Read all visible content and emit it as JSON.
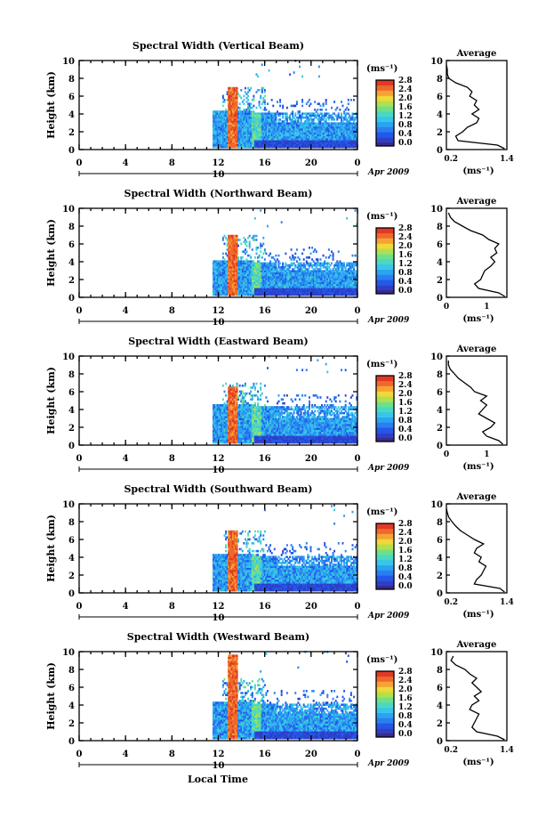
{
  "figure": {
    "xaxis_label": "Local Time",
    "date_label": "Apr 2009",
    "day_marker": "10",
    "colorbar_unit": "(ms⁻¹)",
    "colorbar_ticks": [
      "0.0",
      "0.4",
      "0.8",
      "1.2",
      "1.6",
      "2.0",
      "2.4",
      "2.8"
    ],
    "avg_title": "Average",
    "avg_xlabel": "(ms⁻¹)"
  },
  "chart_data": [
    {
      "type": "heatmap",
      "title": "Spectral Width (Vertical Beam)",
      "ylabel": "Height (km)",
      "xlim": [
        0,
        24
      ],
      "ylim": [
        0,
        10
      ],
      "xticks": [
        "0",
        "4",
        "8",
        "12",
        "16",
        "20",
        "0"
      ],
      "yticks": [
        "0",
        "2",
        "4",
        "6",
        "8",
        "10"
      ],
      "colorscale": {
        "unit": "ms^-1",
        "min": 0.0,
        "max": 3.0
      },
      "data_extent": {
        "start_hour": 11.5,
        "end_hour": 24,
        "base_top_km": 4.0
      },
      "convective_band": {
        "center_hour": 13.2,
        "top_km": 7.0,
        "value": 3.0
      },
      "average_profile": {
        "xlim": [
          0.1,
          1.4
        ],
        "xticks": [
          "0.2",
          "1.4"
        ],
        "yticks": [
          "0",
          "2",
          "4",
          "6",
          "8",
          "10"
        ],
        "heights_km": [
          0.1,
          0.5,
          1,
          1.5,
          2,
          2.5,
          3,
          3.5,
          4,
          4.5,
          5,
          5.5,
          6,
          6.5,
          7,
          7.5,
          8,
          8.5,
          9,
          9.5
        ],
        "values": [
          1.35,
          1.2,
          0.35,
          0.3,
          0.45,
          0.55,
          0.75,
          0.8,
          0.65,
          0.8,
          0.7,
          0.75,
          0.6,
          0.65,
          0.55,
          0.3,
          0.15,
          0.12,
          0.12,
          0.1
        ]
      }
    },
    {
      "type": "heatmap",
      "title": "Spectral Width (Northward Beam)",
      "ylabel": "Height (km)",
      "xlim": [
        0,
        24
      ],
      "ylim": [
        0,
        10
      ],
      "xticks": [
        "0",
        "4",
        "8",
        "12",
        "16",
        "20",
        "0"
      ],
      "yticks": [
        "0",
        "2",
        "4",
        "6",
        "8",
        "10"
      ],
      "colorscale": {
        "unit": "ms^-1",
        "min": 0.0,
        "max": 3.0
      },
      "data_extent": {
        "start_hour": 11.5,
        "end_hour": 24,
        "base_top_km": 3.8
      },
      "convective_band": {
        "center_hour": 13.2,
        "top_km": 7.0,
        "value": 3.0
      },
      "average_profile": {
        "xlim": [
          0,
          1.5
        ],
        "xticks": [
          "0",
          "1"
        ],
        "yticks": [
          "0",
          "2",
          "4",
          "6",
          "8",
          "10"
        ],
        "heights_km": [
          0.1,
          0.5,
          1,
          1.5,
          2,
          2.5,
          3,
          3.5,
          4,
          4.5,
          5,
          5.5,
          6,
          6.5,
          7,
          7.5,
          8,
          8.5,
          9,
          9.5
        ],
        "values": [
          1.45,
          1.3,
          0.8,
          0.7,
          0.85,
          0.9,
          0.95,
          1.1,
          1.2,
          1.1,
          1.25,
          1.2,
          1.3,
          1.05,
          0.9,
          0.6,
          0.4,
          0.2,
          0.1,
          0.05
        ]
      }
    },
    {
      "type": "heatmap",
      "title": "Spectral Width (Eastward Beam)",
      "ylabel": "Height (km)",
      "xlim": [
        0,
        24
      ],
      "ylim": [
        0,
        10
      ],
      "xticks": [
        "0",
        "4",
        "8",
        "12",
        "16",
        "20",
        "0"
      ],
      "yticks": [
        "0",
        "2",
        "4",
        "6",
        "8",
        "10"
      ],
      "colorscale": {
        "unit": "ms^-1",
        "min": 0.0,
        "max": 3.0
      },
      "data_extent": {
        "start_hour": 11.5,
        "end_hour": 24,
        "base_top_km": 4.2
      },
      "convective_band": {
        "center_hour": 13.2,
        "top_km": 6.5,
        "value": 3.0
      },
      "average_profile": {
        "xlim": [
          0,
          1.5
        ],
        "xticks": [
          "0",
          "1"
        ],
        "yticks": [
          "0",
          "2",
          "4",
          "6",
          "8",
          "10"
        ],
        "heights_km": [
          0.1,
          0.5,
          1,
          1.5,
          2,
          2.5,
          3,
          3.5,
          4,
          4.5,
          5,
          5.5,
          6,
          6.5,
          7,
          7.5,
          8,
          8.5,
          9,
          9.5
        ],
        "values": [
          1.4,
          1.3,
          1.0,
          0.9,
          1.1,
          1.2,
          1.0,
          0.8,
          0.9,
          1.0,
          0.85,
          1.0,
          0.7,
          0.6,
          0.45,
          0.3,
          0.2,
          0.1,
          0.05,
          0.05
        ]
      }
    },
    {
      "type": "heatmap",
      "title": "Spectral Width (Southward Beam)",
      "ylabel": "Height (km)",
      "xlim": [
        0,
        24
      ],
      "ylim": [
        0,
        10
      ],
      "xticks": [
        "0",
        "4",
        "8",
        "12",
        "16",
        "20",
        "0"
      ],
      "yticks": [
        "0",
        "2",
        "4",
        "6",
        "8",
        "10"
      ],
      "colorscale": {
        "unit": "ms^-1",
        "min": 0.0,
        "max": 3.0
      },
      "data_extent": {
        "start_hour": 11.5,
        "end_hour": 24,
        "base_top_km": 4.0
      },
      "convective_band": {
        "center_hour": 13.2,
        "top_km": 6.8,
        "value": 3.0
      },
      "average_profile": {
        "xlim": [
          0.1,
          1.4
        ],
        "xticks": [
          "0.2",
          "1.4"
        ],
        "yticks": [
          "0",
          "2",
          "4",
          "6",
          "8",
          "10"
        ],
        "heights_km": [
          0.1,
          0.5,
          1,
          1.5,
          2,
          2.5,
          3,
          3.5,
          4,
          4.5,
          5,
          5.5,
          6,
          6.5,
          7,
          7.5,
          8,
          8.5,
          9,
          9.5
        ],
        "values": [
          1.35,
          1.25,
          0.7,
          0.75,
          0.85,
          0.9,
          0.95,
          0.8,
          0.85,
          0.7,
          0.75,
          0.9,
          0.7,
          0.55,
          0.4,
          0.3,
          0.22,
          0.15,
          0.12,
          0.1
        ]
      }
    },
    {
      "type": "heatmap",
      "title": "Spectral Width (Westward Beam)",
      "ylabel": "Height (km)",
      "xlim": [
        0,
        24
      ],
      "ylim": [
        0,
        10
      ],
      "xticks": [
        "0",
        "4",
        "8",
        "12",
        "16",
        "20",
        "0"
      ],
      "yticks": [
        "0",
        "2",
        "4",
        "6",
        "8",
        "10"
      ],
      "colorscale": {
        "unit": "ms^-1",
        "min": 0.0,
        "max": 3.0
      },
      "data_extent": {
        "start_hour": 11.5,
        "end_hour": 24,
        "base_top_km": 4.0
      },
      "convective_band": {
        "center_hour": 13.2,
        "top_km": 9.5,
        "value": 3.0
      },
      "average_profile": {
        "xlim": [
          0.1,
          1.4
        ],
        "xticks": [
          "0.2",
          "1.4"
        ],
        "yticks": [
          "0",
          "2",
          "4",
          "6",
          "8",
          "10"
        ],
        "heights_km": [
          0.1,
          0.5,
          1,
          1.5,
          2,
          2.5,
          3,
          3.5,
          4,
          4.5,
          5,
          5.5,
          6,
          6.5,
          7,
          7.5,
          8,
          8.5,
          9,
          9.5
        ],
        "values": [
          1.35,
          1.2,
          0.75,
          0.65,
          0.7,
          0.75,
          0.8,
          0.6,
          0.65,
          0.8,
          0.7,
          0.85,
          0.75,
          0.65,
          0.75,
          0.6,
          0.5,
          0.3,
          0.2,
          0.25
        ]
      }
    }
  ]
}
